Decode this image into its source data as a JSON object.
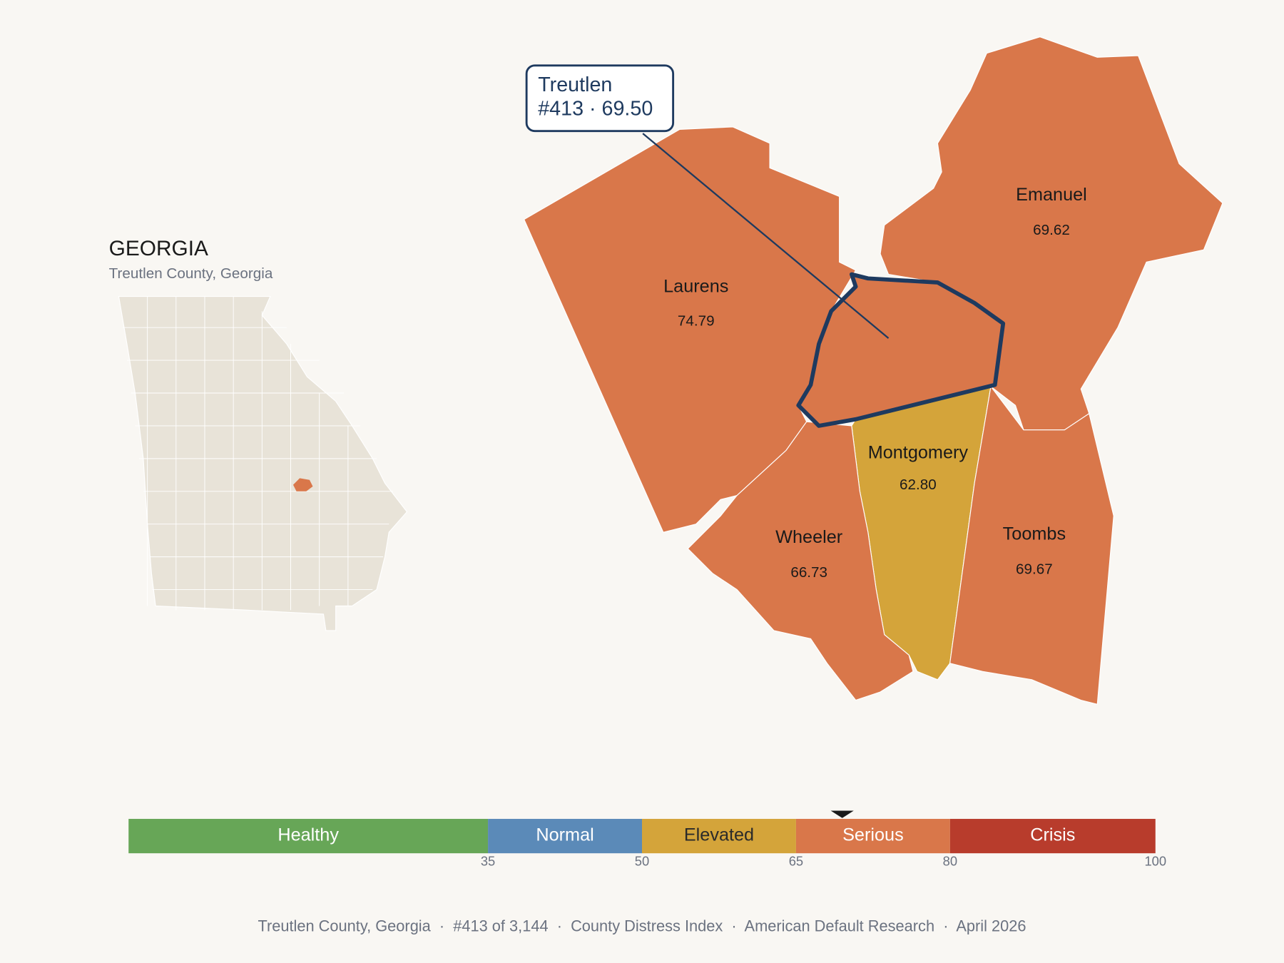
{
  "header": {
    "title": "GEORGIA",
    "subtitle": "Treutlen County, Georgia"
  },
  "highlight": {
    "name": "Treutlen",
    "label": "#413 · 69.50",
    "value": 69.5
  },
  "counties": [
    {
      "name": "Laurens",
      "value": 74.79,
      "value_label": "74.79"
    },
    {
      "name": "Emanuel",
      "value": 69.62,
      "value_label": "69.62"
    },
    {
      "name": "Montgomery",
      "value": 62.8,
      "value_label": "62.80"
    },
    {
      "name": "Wheeler",
      "value": 66.73,
      "value_label": "66.73"
    },
    {
      "name": "Toombs",
      "value": 69.67,
      "value_label": "69.67"
    }
  ],
  "legend": {
    "xlim": [
      0,
      100
    ],
    "ticks": [
      35,
      50,
      65,
      80,
      100
    ],
    "bands": [
      {
        "label": "Healthy",
        "color": "#67a657",
        "text_color": "#ffffff"
      },
      {
        "label": "Normal",
        "color": "#5b8ab8",
        "text_color": "#ffffff"
      },
      {
        "label": "Elevated",
        "color": "#d4a43a",
        "text_color": "#2a2a2a"
      },
      {
        "label": "Serious",
        "color": "#d9774a",
        "text_color": "#ffffff"
      },
      {
        "label": "Crisis",
        "color": "#b83c2c",
        "text_color": "#ffffff"
      }
    ]
  },
  "footer": "Treutlen County, Georgia  ·  #413 of 3,144  ·  County Distress Index  ·  American Default Research  ·  April 2026"
}
